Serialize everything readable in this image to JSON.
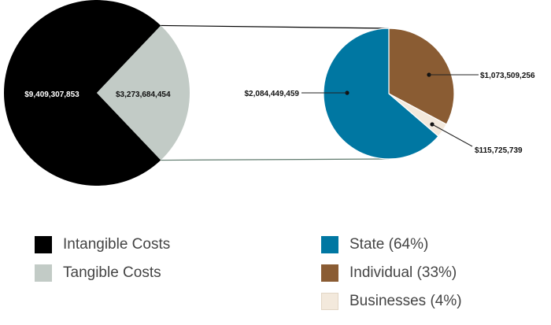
{
  "chart_data": [
    {
      "type": "pie",
      "slices": [
        {
          "name": "Intangible Costs",
          "value": 9409307853,
          "label": "$9,409,307,853",
          "color": "#000000"
        },
        {
          "name": "Tangible Costs",
          "value": 3273684454,
          "label": "$3,273,684,454",
          "color": "#c2cbc6"
        }
      ]
    },
    {
      "type": "pie",
      "slices": [
        {
          "name": "State (64%)",
          "value": 2084449459,
          "label": "$2,084,449,459",
          "color": "#0077a2"
        },
        {
          "name": "Individual (33%)",
          "value": 1073509256,
          "label": "$1,073,509,256",
          "color": "#8a5c33"
        },
        {
          "name": "Businesses (4%)",
          "value": 115725739,
          "label": "$115,725,739",
          "color": "#f3e9dc"
        }
      ]
    }
  ],
  "legend": {
    "left": [
      {
        "label": "Intangible Costs",
        "color": "#000000"
      },
      {
        "label": "Tangible Costs",
        "color": "#c2cbc6"
      }
    ],
    "right": [
      {
        "label": "State (64%)",
        "color": "#0077a2"
      },
      {
        "label": "Individual (33%)",
        "color": "#8a5c33"
      },
      {
        "label": "Businesses (4%)",
        "color": "#f3e9dc"
      }
    ]
  }
}
